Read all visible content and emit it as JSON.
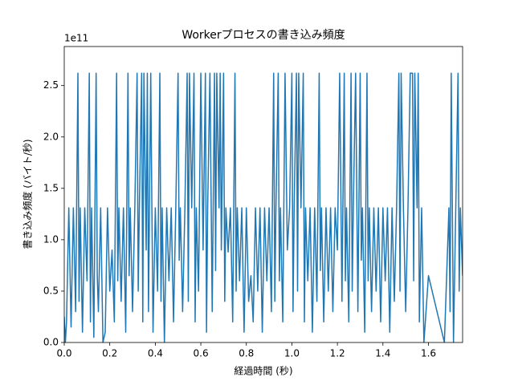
{
  "chart_data": {
    "type": "line",
    "title": "Workerプロセスの書き込み頻度",
    "xlabel": "経過時間 (秒)",
    "ylabel": "書き込み頻度 (バイト/秒)",
    "y_offset_label": "1e11",
    "color": "#1f77b4",
    "xlim": [
      0,
      1.75
    ],
    "ylim": [
      0,
      2.88
    ],
    "xticks": [
      {
        "value": 0,
        "label": "0.0"
      },
      0.2,
      0.4,
      0.6,
      0.8,
      {
        "value": 1,
        "label": "1.0"
      },
      1.2,
      1.4,
      1.6
    ],
    "yticks": [
      {
        "value": 0,
        "label": "0.0"
      },
      0.5,
      {
        "value": 1,
        "label": "1.0"
      },
      1.5,
      {
        "value": 2,
        "label": "2.0"
      },
      2.5
    ],
    "x": [
      0.0,
      0.005,
      0.01,
      0.02,
      0.03,
      0.04,
      0.05,
      0.06,
      0.065,
      0.07,
      0.08,
      0.09,
      0.1,
      0.11,
      0.115,
      0.12,
      0.13,
      0.14,
      0.145,
      0.15,
      0.16,
      0.17,
      0.18,
      0.19,
      0.2,
      0.21,
      0.22,
      0.23,
      0.235,
      0.24,
      0.25,
      0.26,
      0.27,
      0.28,
      0.285,
      0.29,
      0.3,
      0.31,
      0.32,
      0.325,
      0.33,
      0.34,
      0.345,
      0.35,
      0.36,
      0.365,
      0.37,
      0.38,
      0.385,
      0.39,
      0.4,
      0.41,
      0.42,
      0.425,
      0.43,
      0.44,
      0.45,
      0.46,
      0.47,
      0.48,
      0.49,
      0.5,
      0.505,
      0.51,
      0.52,
      0.53,
      0.54,
      0.545,
      0.55,
      0.56,
      0.57,
      0.575,
      0.58,
      0.59,
      0.6,
      0.61,
      0.62,
      0.625,
      0.63,
      0.64,
      0.65,
      0.66,
      0.665,
      0.67,
      0.68,
      0.685,
      0.69,
      0.7,
      0.705,
      0.71,
      0.72,
      0.73,
      0.74,
      0.75,
      0.755,
      0.76,
      0.77,
      0.78,
      0.79,
      0.8,
      0.81,
      0.82,
      0.83,
      0.84,
      0.85,
      0.86,
      0.87,
      0.88,
      0.89,
      0.9,
      0.91,
      0.92,
      0.925,
      0.93,
      0.94,
      0.945,
      0.95,
      0.96,
      0.97,
      0.98,
      0.99,
      1.0,
      1.005,
      1.01,
      1.02,
      1.025,
      1.03,
      1.04,
      1.05,
      1.055,
      1.06,
      1.07,
      1.08,
      1.09,
      1.1,
      1.11,
      1.12,
      1.125,
      1.13,
      1.14,
      1.15,
      1.16,
      1.17,
      1.18,
      1.19,
      1.2,
      1.21,
      1.22,
      1.23,
      1.235,
      1.24,
      1.25,
      1.26,
      1.265,
      1.27,
      1.28,
      1.29,
      1.3,
      1.305,
      1.31,
      1.32,
      1.33,
      1.335,
      1.34,
      1.35,
      1.36,
      1.37,
      1.38,
      1.39,
      1.4,
      1.41,
      1.42,
      1.43,
      1.44,
      1.45,
      1.46,
      1.47,
      1.475,
      1.48,
      1.49,
      1.5,
      1.51,
      1.52,
      1.53,
      1.535,
      1.54,
      1.55,
      1.555,
      1.56,
      1.57,
      1.58,
      1.6,
      1.67,
      1.69,
      1.695,
      1.7,
      1.71,
      1.72,
      1.73,
      1.735,
      1.74,
      1.75
    ],
    "values": [
      0.25,
      0.0,
      0.2,
      1.31,
      0.15,
      1.31,
      0.3,
      2.62,
      0.4,
      1.31,
      0.1,
      1.31,
      0.6,
      2.62,
      0.2,
      1.31,
      0.05,
      2.62,
      0.65,
      0.3,
      1.31,
      0.0,
      0.1,
      1.31,
      0.5,
      0.9,
      0.2,
      2.62,
      0.6,
      1.31,
      0.4,
      1.31,
      0.1,
      2.62,
      0.65,
      1.31,
      0.3,
      1.31,
      2.62,
      0.5,
      1.31,
      2.62,
      0.2,
      2.62,
      0.9,
      2.62,
      0.3,
      2.62,
      1.31,
      0.1,
      1.31,
      0.5,
      2.62,
      0.4,
      1.31,
      0.0,
      1.31,
      0.6,
      1.31,
      0.2,
      1.31,
      2.62,
      0.8,
      1.31,
      0.3,
      1.31,
      2.62,
      0.4,
      2.62,
      1.31,
      2.62,
      0.2,
      1.31,
      0.5,
      2.62,
      0.9,
      2.62,
      0.1,
      1.31,
      2.62,
      0.3,
      2.62,
      0.7,
      2.62,
      1.31,
      2.62,
      0.9,
      2.62,
      0.4,
      1.31,
      0.88,
      1.31,
      0.2,
      2.62,
      0.5,
      1.31,
      0.6,
      1.31,
      0.1,
      1.31,
      0.4,
      0.65,
      0.2,
      1.31,
      0.5,
      1.31,
      0.1,
      1.31,
      0.6,
      1.31,
      0.3,
      2.62,
      0.4,
      1.31,
      2.62,
      0.6,
      1.31,
      0.2,
      2.62,
      0.9,
      1.31,
      2.62,
      0.3,
      1.31,
      2.62,
      0.5,
      2.62,
      1.31,
      2.62,
      0.2,
      1.31,
      0.6,
      1.31,
      0.1,
      1.31,
      0.4,
      2.62,
      0.7,
      1.31,
      0.2,
      1.31,
      0.5,
      1.31,
      0.3,
      1.31,
      0.9,
      2.62,
      0.4,
      2.62,
      0.6,
      1.31,
      0.2,
      2.62,
      0.5,
      1.31,
      2.62,
      0.3,
      2.62,
      0.8,
      1.31,
      0.1,
      2.62,
      0.6,
      1.31,
      0.3,
      1.31,
      0.5,
      1.31,
      0.2,
      1.31,
      0.6,
      1.31,
      0.1,
      1.31,
      0.4,
      1.31,
      2.62,
      0.5,
      2.62,
      1.31,
      0.3,
      1.31,
      2.62,
      2.62,
      0.6,
      2.62,
      1.31,
      2.62,
      0.2,
      1.31,
      0.0,
      0.65,
      0.0,
      1.31,
      0.3,
      2.62,
      0.0,
      1.31,
      2.62,
      0.5,
      1.31,
      0.65
    ]
  }
}
